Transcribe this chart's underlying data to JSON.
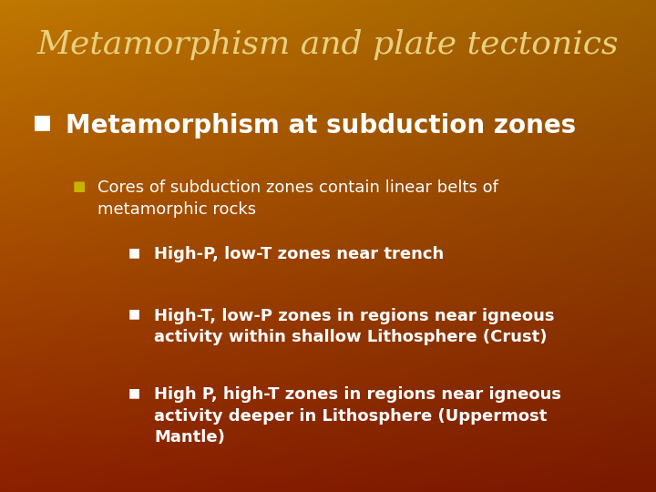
{
  "title": "Metamorphism and plate tectonics",
  "title_color": "#e8d080",
  "title_fontsize": 26,
  "title_style": "italic",
  "title_font": "serif",
  "bg_color_topleft": "#c07800",
  "bg_color_topright": "#a06000",
  "bg_color_bottomleft": "#8b2000",
  "bg_color_bottomright": "#7a1800",
  "bullet1_text": "Metamorphism at subduction zones",
  "bullet1_color": "#ffffff",
  "bullet1_fontsize": 20,
  "bullet1_bullet_color": "#ffffff",
  "bullet2_text": "Cores of subduction zones contain linear belts of\nmetamorphic rocks",
  "bullet2_color": "#ffffff",
  "bullet2_fontsize": 13,
  "bullet2_bullet_color": "#c8b400",
  "sub_bullets": [
    "High-P, low-T zones near trench",
    "High-T, low-P zones in regions near igneous\nactivity within shallow Lithosphere (Crust)",
    "High P, high-T zones in regions near igneous\nactivity deeper in Lithosphere (Uppermost\nMantle)"
  ],
  "sub_bullet_color": "#ffffff",
  "sub_bullet_fontsize": 13,
  "sub_bullet_bullet_color": "#ffffff"
}
